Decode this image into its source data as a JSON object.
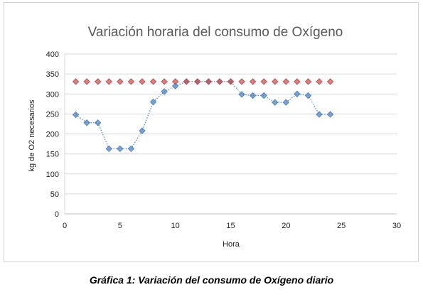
{
  "caption": "Gráfica 1: Variación del consumo de Oxígeno diario",
  "chart_data": {
    "type": "scatter",
    "title": "Variación horaria del consumo de Oxígeno",
    "xlabel": "Hora",
    "ylabel": "kg de O2 necesarios",
    "xlim": [
      0,
      30
    ],
    "ylim": [
      0,
      400
    ],
    "xticks": [
      0,
      5,
      10,
      15,
      20,
      25,
      30
    ],
    "yticks": [
      0,
      50,
      100,
      150,
      200,
      250,
      300,
      350,
      400
    ],
    "grid": "horizontal",
    "legend": "none",
    "series": [
      {
        "color": "#4f81bd",
        "line": "dotted",
        "x": [
          1,
          2,
          3,
          4,
          5,
          6,
          7,
          8,
          9,
          10,
          11,
          12,
          13,
          14,
          15,
          16,
          17,
          18,
          19,
          20,
          21,
          22,
          23,
          24
        ],
        "y": [
          248,
          228,
          228,
          163,
          163,
          163,
          208,
          280,
          306,
          320,
          331,
          331,
          331,
          331,
          331,
          299,
          296,
          296,
          279,
          279,
          300,
          296,
          249,
          249
        ]
      },
      {
        "color": "#c0504d",
        "line": "none",
        "x": [
          1,
          2,
          3,
          4,
          5,
          6,
          7,
          8,
          9,
          10,
          11,
          12,
          13,
          14,
          15,
          16,
          17,
          18,
          19,
          20,
          21,
          22,
          23,
          24
        ],
        "y": [
          331,
          331,
          331,
          331,
          331,
          331,
          331,
          331,
          331,
          331,
          331,
          331,
          331,
          331,
          331,
          331,
          331,
          331,
          331,
          331,
          331,
          331,
          331,
          331
        ]
      }
    ]
  }
}
